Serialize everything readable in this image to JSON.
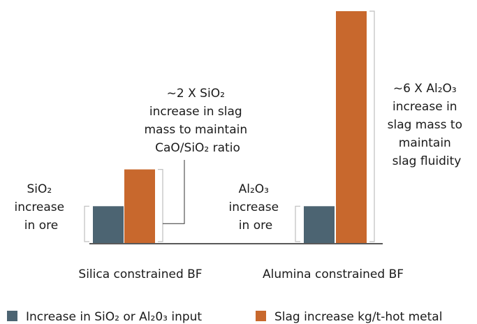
{
  "colors": {
    "input": "#4c6472",
    "slag": "#c8682d",
    "axis": "#595959",
    "bracket": "#bfbfbf"
  },
  "chart_data": {
    "type": "bar",
    "categories": [
      "Silica constrained BF",
      "Alumina constrained BF"
    ],
    "series": [
      {
        "name": "Increase in SiO₂ or Al₂0₃ input",
        "values": [
          1,
          1
        ]
      },
      {
        "name": "Slag increase kg/t-hot metal",
        "values": [
          2,
          6.3
        ]
      }
    ],
    "ylim": [
      0,
      7
    ],
    "grid": false,
    "legend_position": "bottom",
    "annotations": {
      "silica_input": [
        "SiO₂",
        "increase",
        "in ore"
      ],
      "silica_slag": [
        "~2 X SiO₂",
        "increase in slag",
        "mass to maintain",
        "CaO/SiO₂ ratio"
      ],
      "alumina_input": [
        "Al₂O₃",
        "increase",
        "in ore"
      ],
      "alumina_slag": [
        "~6 X Al₂O₃",
        "increase in",
        "slag mass to",
        "maintain",
        "slag fluidity"
      ]
    }
  }
}
